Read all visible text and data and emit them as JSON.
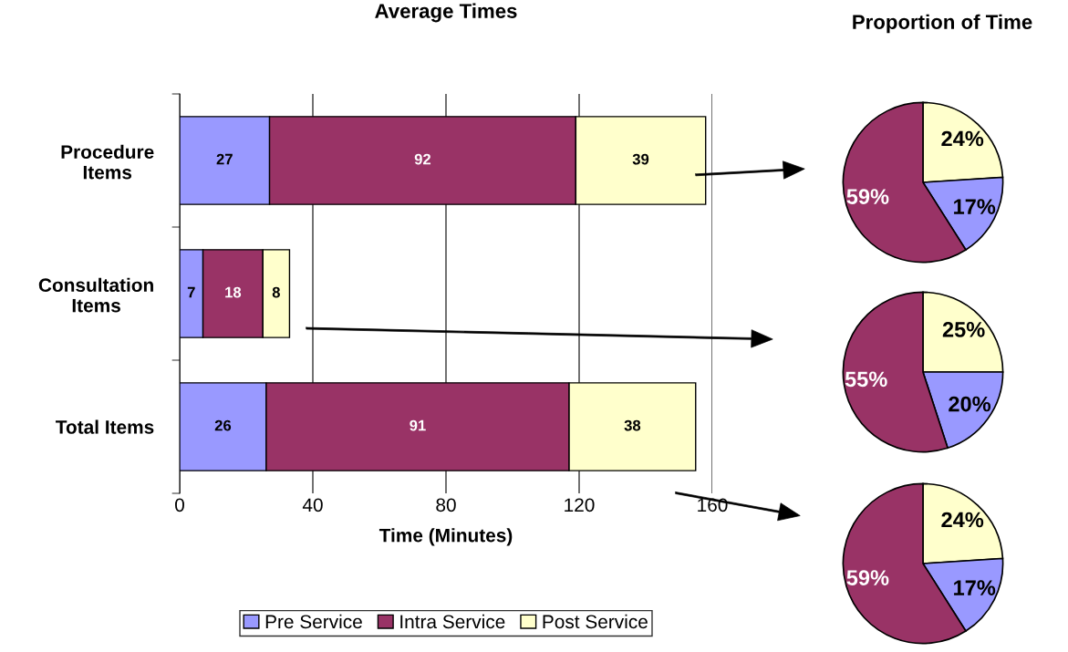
{
  "chart_data": [
    {
      "type": "bar",
      "orientation": "horizontal",
      "stacked": true,
      "title": "Average Times",
      "xlabel": "Time (Minutes)",
      "categories": [
        "Procedure\nItems",
        "Consultation\nItems",
        "Total Items"
      ],
      "series": [
        {
          "name": "Pre Service",
          "color": "#9999ff",
          "values": [
            27,
            7,
            26
          ]
        },
        {
          "name": "Intra Service",
          "color": "#993366",
          "values": [
            92,
            18,
            91
          ]
        },
        {
          "name": "Post Service",
          "color": "#ffffcc",
          "values": [
            39,
            8,
            38
          ]
        }
      ],
      "xlim": [
        0,
        160
      ],
      "xticks": [
        0,
        40,
        80,
        120,
        160
      ],
      "grid": "x",
      "legend": "bottom",
      "data_labels": true
    },
    {
      "type": "pie",
      "title": "Proportion of Time",
      "categories": [
        null,
        null,
        null
      ],
      "values": [
        24,
        17,
        59
      ],
      "colors": [
        "#ffffcc",
        "#9999ff",
        "#993366"
      ],
      "value_labels": [
        "24%",
        "17%",
        "59%"
      ]
    },
    {
      "type": "pie",
      "categories": [
        null,
        null,
        null
      ],
      "values": [
        25,
        20,
        55
      ],
      "colors": [
        "#ffffcc",
        "#9999ff",
        "#993366"
      ],
      "value_labels": [
        "25%",
        "20%",
        "55%"
      ]
    },
    {
      "type": "pie",
      "categories": [
        null,
        null,
        null
      ],
      "values": [
        24,
        17,
        59
      ],
      "colors": [
        "#ffffcc",
        "#9999ff",
        "#993366"
      ],
      "value_labels": [
        "24%",
        "17%",
        "59%"
      ]
    }
  ]
}
